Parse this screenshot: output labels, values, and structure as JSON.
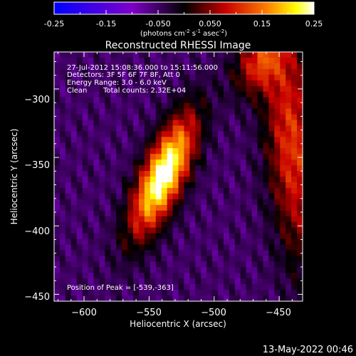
{
  "colorbar": {
    "ticks": [
      "-0.25",
      "-0.15",
      "-0.050",
      "0.050",
      "0.15",
      "0.25"
    ],
    "unit_prefix": "(photons cm",
    "unit_exp1": "-2",
    "unit_mid": " s",
    "unit_exp2": "-1",
    "unit_mid2": " asec",
    "unit_exp3": "-2",
    "unit_suffix": ")"
  },
  "annotations": {
    "time": "27-Jul-2012 15:08:36.000 to 15:11:56.000",
    "detectors": "Detectors: 3F 5F 6F 7F 8F, Att 0",
    "energy": "Energy Range: 3.0 - 6.0 keV",
    "clean_label": "Clean",
    "counts": "Total counts: 2.32E+04",
    "peak": "Position of Peak = [-539,-363]"
  },
  "footer": {
    "timestamp": "13-May-2022 00:46"
  },
  "chart_data": {
    "type": "heatmap",
    "title": "Reconstructed RHESSI Image",
    "xlabel": "Heliocentric X (arcsec)",
    "ylabel": "Heliocentric Y (arcsec)",
    "xlim": [
      -623,
      -432
    ],
    "ylim": [
      -455,
      -273
    ],
    "xticks": [
      -600,
      -550,
      -500,
      -450
    ],
    "yticks": [
      -300,
      -350,
      -400,
      -450
    ],
    "xtick_labels": [
      "−600",
      "−550",
      "−500",
      "−450"
    ],
    "ytick_labels": [
      "−300",
      "−350",
      "−400",
      "−450"
    ],
    "color_range": [
      -0.25,
      0.25
    ],
    "colormap": "blue-purple-black-red-yellow-white",
    "peak": [
      -539,
      -363
    ],
    "peak_value": 0.25,
    "sources": [
      {
        "x": -539,
        "y": -363,
        "amp": 0.27,
        "sigma_major": 32,
        "sigma_minor": 11,
        "angle_deg": 65
      },
      {
        "x": -440,
        "y": -340,
        "amp": 0.11,
        "sigma_major": 60,
        "sigma_minor": 14,
        "angle_deg": 95
      },
      {
        "x": -465,
        "y": -280,
        "amp": 0.09,
        "sigma_major": 18,
        "sigma_minor": 12,
        "angle_deg": 60
      }
    ],
    "background_level": -0.05
  }
}
